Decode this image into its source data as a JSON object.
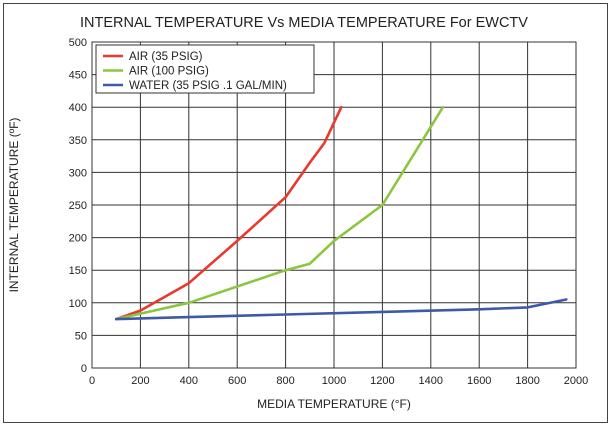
{
  "chart_data": {
    "type": "line",
    "title": "INTERNAL TEMPERATURE Vs MEDIA TEMPERATURE For EWCTV",
    "xlabel": "MEDIA TEMPERATURE (°F)",
    "ylabel": "INTERNAL TEMPERATURE (ºF)",
    "xlim": [
      0,
      2000
    ],
    "ylim": [
      0,
      500
    ],
    "xticks": [
      0,
      200,
      400,
      600,
      800,
      1000,
      1200,
      1400,
      1600,
      1800,
      2000
    ],
    "yticks": [
      0,
      50,
      100,
      150,
      200,
      250,
      300,
      350,
      400,
      450,
      500
    ],
    "grid": true,
    "legend_position": "top-left",
    "series": [
      {
        "name": "AIR (35 PSIG)",
        "color": "#e8392d",
        "x": [
          100,
          200,
          400,
          600,
          800,
          900,
          960,
          1030
        ],
        "y": [
          75,
          88,
          130,
          195,
          262,
          315,
          345,
          400
        ]
      },
      {
        "name": "AIR (100 PSIG)",
        "color": "#8cc63f",
        "x": [
          100,
          400,
          800,
          900,
          1000,
          1200,
          1300,
          1400,
          1450
        ],
        "y": [
          75,
          100,
          150,
          160,
          195,
          250,
          310,
          370,
          400
        ]
      },
      {
        "name": "WATER (35 PSIG .1 GAL/MIN)",
        "color": "#3c5aa8",
        "x": [
          100,
          400,
          800,
          1200,
          1600,
          1800,
          1960
        ],
        "y": [
          75,
          78,
          82,
          86,
          90,
          93,
          105
        ]
      }
    ]
  }
}
